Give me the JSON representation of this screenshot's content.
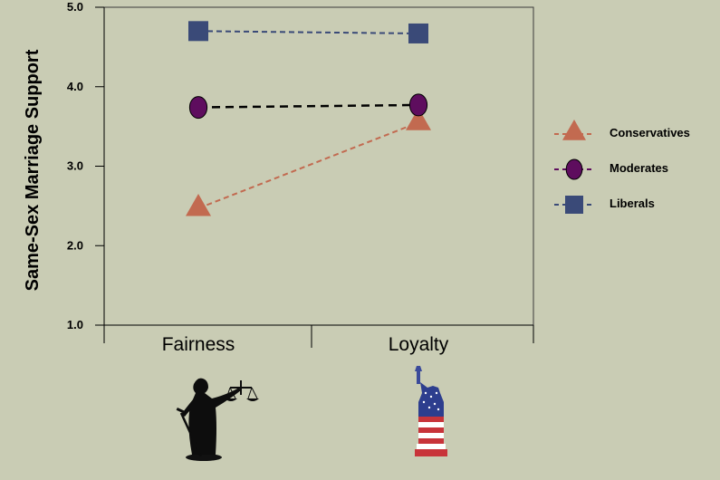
{
  "chart_data": {
    "type": "line",
    "categories": [
      "Fairness",
      "Loyalty"
    ],
    "ylabel": "Same-Sex Marriage Support",
    "ylim": [
      1.0,
      5.0
    ],
    "yticks": [
      "1.0",
      "2.0",
      "3.0",
      "4.0",
      "5.0"
    ],
    "grid": false,
    "legend_position": "right",
    "series": [
      {
        "name": "Conservatives",
        "values": [
          2.47,
          3.55
        ],
        "color": "#c26a50",
        "marker": "triangle",
        "line": "dashed"
      },
      {
        "name": "Moderates",
        "values": [
          3.74,
          3.77
        ],
        "color": "#5e0d5e",
        "line_color": "#000000",
        "marker": "circle",
        "line": "dashed"
      },
      {
        "name": "Liberals",
        "values": [
          4.7,
          4.67
        ],
        "color": "#3a4a78",
        "marker": "square",
        "line": "dashed"
      }
    ],
    "icons": [
      "lady-justice-icon",
      "statue-of-liberty-flag-icon"
    ]
  }
}
